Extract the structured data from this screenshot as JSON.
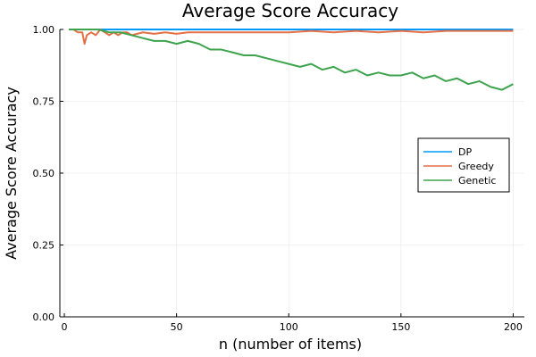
{
  "chart_data": {
    "type": "line",
    "title": "Average Score Accuracy",
    "xlabel": "n (number of items)",
    "ylabel": "Average Score Accuracy",
    "xlim": [
      -2,
      205
    ],
    "ylim": [
      0,
      1.0
    ],
    "xticks": [
      0,
      50,
      100,
      150,
      200
    ],
    "xtick_labels": [
      "0",
      "50",
      "100",
      "150",
      "200"
    ],
    "yticks": [
      0,
      0.25,
      0.5,
      0.75,
      1.0
    ],
    "ytick_labels": [
      "0.00",
      "0.25",
      "0.50",
      "0.75",
      "1.00"
    ],
    "grid": true,
    "legend_position": "right",
    "series": [
      {
        "name": "DP",
        "color": "#009AFA",
        "x": [
          2,
          200
        ],
        "values": [
          1.0,
          1.0
        ]
      },
      {
        "name": "Greedy",
        "color": "#E36F47",
        "x": [
          2,
          4,
          6,
          8,
          9,
          10,
          12,
          14,
          16,
          18,
          20,
          22,
          24,
          26,
          28,
          30,
          35,
          40,
          45,
          50,
          55,
          60,
          70,
          80,
          90,
          100,
          110,
          120,
          130,
          140,
          150,
          160,
          170,
          180,
          190,
          200
        ],
        "values": [
          1.0,
          1.0,
          0.99,
          0.99,
          0.95,
          0.98,
          0.99,
          0.98,
          1.0,
          0.99,
          0.98,
          0.99,
          0.98,
          0.99,
          0.99,
          0.98,
          0.99,
          0.985,
          0.99,
          0.985,
          0.99,
          0.99,
          0.99,
          0.99,
          0.99,
          0.99,
          0.995,
          0.99,
          0.995,
          0.99,
          0.995,
          0.99,
          0.995,
          0.995,
          0.995,
          0.995
        ]
      },
      {
        "name": "Genetic",
        "color": "#3DA44D",
        "x": [
          2,
          5,
          10,
          15,
          20,
          25,
          30,
          35,
          40,
          45,
          50,
          55,
          60,
          65,
          70,
          75,
          80,
          85,
          90,
          95,
          100,
          105,
          110,
          115,
          120,
          125,
          130,
          135,
          140,
          145,
          150,
          155,
          160,
          165,
          170,
          175,
          180,
          185,
          190,
          195,
          200
        ],
        "values": [
          1.0,
          1.0,
          1.0,
          1.0,
          0.99,
          0.99,
          0.98,
          0.97,
          0.96,
          0.96,
          0.95,
          0.96,
          0.95,
          0.93,
          0.93,
          0.92,
          0.91,
          0.91,
          0.9,
          0.89,
          0.88,
          0.87,
          0.88,
          0.86,
          0.87,
          0.85,
          0.86,
          0.84,
          0.85,
          0.84,
          0.84,
          0.85,
          0.83,
          0.84,
          0.82,
          0.83,
          0.81,
          0.82,
          0.8,
          0.79,
          0.81
        ]
      }
    ]
  }
}
